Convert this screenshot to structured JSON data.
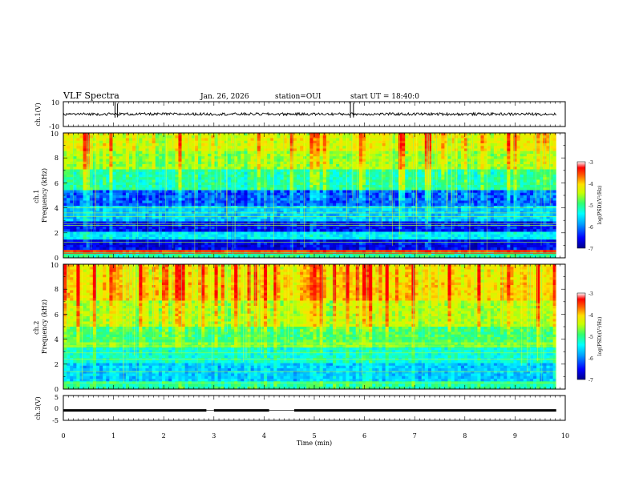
{
  "header": {
    "title": "VLF Spectra",
    "date": "Jan. 26, 2026",
    "station": "station=OUI",
    "start": "start UT =  18:40:0"
  },
  "colorbar": {
    "label": "log(PSD)(V²/Hz)",
    "ticks": [
      "-3",
      "-4",
      "-5",
      "-6",
      "-7"
    ],
    "colors": [
      "#00008a",
      "#0000ff",
      "#00a0ff",
      "#00ffff",
      "#30ff70",
      "#c8ff00",
      "#ffe000",
      "#ff6000",
      "#ff0000",
      "#ffffff"
    ]
  },
  "chart_data": [
    {
      "type": "line",
      "name": "ch.1 waveform",
      "ylabel": "ch.1(V)",
      "ylim": [
        -10,
        10
      ],
      "ytick_labels": [
        "10",
        "-10"
      ],
      "baseline": 0,
      "spikes": [
        {
          "t": 1.03,
          "v": 9.5
        },
        {
          "t": 1.08,
          "v": 8.5
        },
        {
          "t": 5.72,
          "v": 9.8
        },
        {
          "t": 5.78,
          "v": 9
        }
      ]
    },
    {
      "type": "heatmap",
      "name": "ch.1 spectrogram",
      "ylabel": "ch.1\nFrequency (kHz)",
      "ylim": [
        0,
        10
      ],
      "ytick_labels": [
        "0",
        "2",
        "4",
        "6",
        "8",
        "10"
      ],
      "bands": [
        {
          "f0": 0.0,
          "f1": 0.4,
          "level": 0.45
        },
        {
          "f0": 0.4,
          "f1": 0.7,
          "level": 0.9
        },
        {
          "f0": 0.7,
          "f1": 1.5,
          "level": 0.1
        },
        {
          "f0": 1.5,
          "f1": 2.0,
          "level": 0.35
        },
        {
          "f0": 2.0,
          "f1": 3.0,
          "level": 0.12
        },
        {
          "f0": 3.0,
          "f1": 4.2,
          "level": 0.3
        },
        {
          "f0": 4.2,
          "f1": 5.5,
          "level": 0.2
        },
        {
          "f0": 5.5,
          "f1": 7.0,
          "level": 0.45
        },
        {
          "f0": 7.0,
          "f1": 8.5,
          "level": 0.6
        },
        {
          "f0": 8.5,
          "f1": 10.0,
          "level": 0.68
        }
      ]
    },
    {
      "type": "heatmap",
      "name": "ch.2 spectrogram",
      "ylabel": "ch.2\nFrequency (kHz)",
      "ylim": [
        0,
        10
      ],
      "ytick_labels": [
        "0",
        "2",
        "4",
        "6",
        "8",
        "10"
      ],
      "bands": [
        {
          "f0": 0.0,
          "f1": 0.7,
          "level": 0.45
        },
        {
          "f0": 0.7,
          "f1": 2.0,
          "level": 0.3
        },
        {
          "f0": 2.0,
          "f1": 3.3,
          "level": 0.4
        },
        {
          "f0": 3.3,
          "f1": 3.8,
          "level": 0.55
        },
        {
          "f0": 3.8,
          "f1": 5.0,
          "level": 0.5
        },
        {
          "f0": 5.0,
          "f1": 7.0,
          "level": 0.62
        },
        {
          "f0": 7.0,
          "f1": 8.5,
          "level": 0.74
        },
        {
          "f0": 8.5,
          "f1": 10.0,
          "level": 0.72
        }
      ]
    },
    {
      "type": "line",
      "name": "ch.3 signal",
      "ylabel": "ch.3(V)",
      "ylim": [
        -5,
        5
      ],
      "ytick_labels": [
        "5",
        "0",
        "-5"
      ],
      "level": -1,
      "gaps": [
        [
          2.85,
          3.0
        ],
        [
          4.1,
          4.6
        ]
      ]
    }
  ],
  "x_axis": {
    "label": "Time (min)",
    "range": [
      0,
      10
    ],
    "tick_labels": [
      "0",
      "1",
      "2",
      "3",
      "4",
      "5",
      "6",
      "7",
      "8",
      "9",
      "10"
    ]
  }
}
